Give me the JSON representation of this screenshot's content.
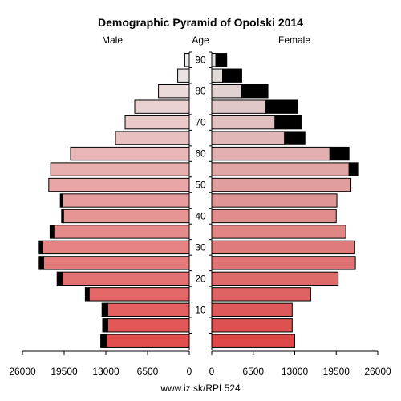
{
  "chart_data": {
    "type": "bar",
    "title": "Demographic Pyramid of Opolski 2014",
    "left_label": "Male",
    "center_label": "Age",
    "right_label": "Female",
    "source": "www.iz.sk/RPL524",
    "x_max": 26000,
    "x_ticks": [
      26000,
      19500,
      13000,
      6500,
      0
    ],
    "x_tick_labels": [
      "26000",
      "19500",
      "13000",
      "6500",
      "0"
    ],
    "age_ticks": [
      10,
      20,
      30,
      40,
      50,
      60,
      70,
      80,
      90
    ],
    "age_groups": [
      "0-4",
      "5-9",
      "10-14",
      "15-19",
      "20-24",
      "25-29",
      "30-34",
      "35-39",
      "40-44",
      "45-49",
      "50-54",
      "55-59",
      "60-64",
      "65-69",
      "70-74",
      "75-79",
      "80-84",
      "85-89",
      "90+"
    ],
    "male": [
      12900,
      12700,
      12700,
      15600,
      19800,
      22700,
      22900,
      21100,
      19600,
      19700,
      21900,
      21600,
      18500,
      11500,
      10000,
      8500,
      4800,
      1800,
      700
    ],
    "male_surplus": [
      900,
      800,
      900,
      600,
      800,
      700,
      500,
      600,
      300,
      400,
      0,
      0,
      0,
      0,
      0,
      0,
      0,
      0,
      0
    ],
    "female": [
      13000,
      12600,
      12600,
      15500,
      19800,
      22500,
      22400,
      21000,
      19500,
      19600,
      21800,
      21500,
      18500,
      11400,
      9900,
      8500,
      4700,
      1700,
      650
    ],
    "female_surplus": [
      0,
      0,
      0,
      0,
      0,
      0,
      0,
      0,
      0,
      0,
      0,
      1500,
      3000,
      3200,
      4100,
      5000,
      4100,
      3000,
      1700
    ]
  }
}
